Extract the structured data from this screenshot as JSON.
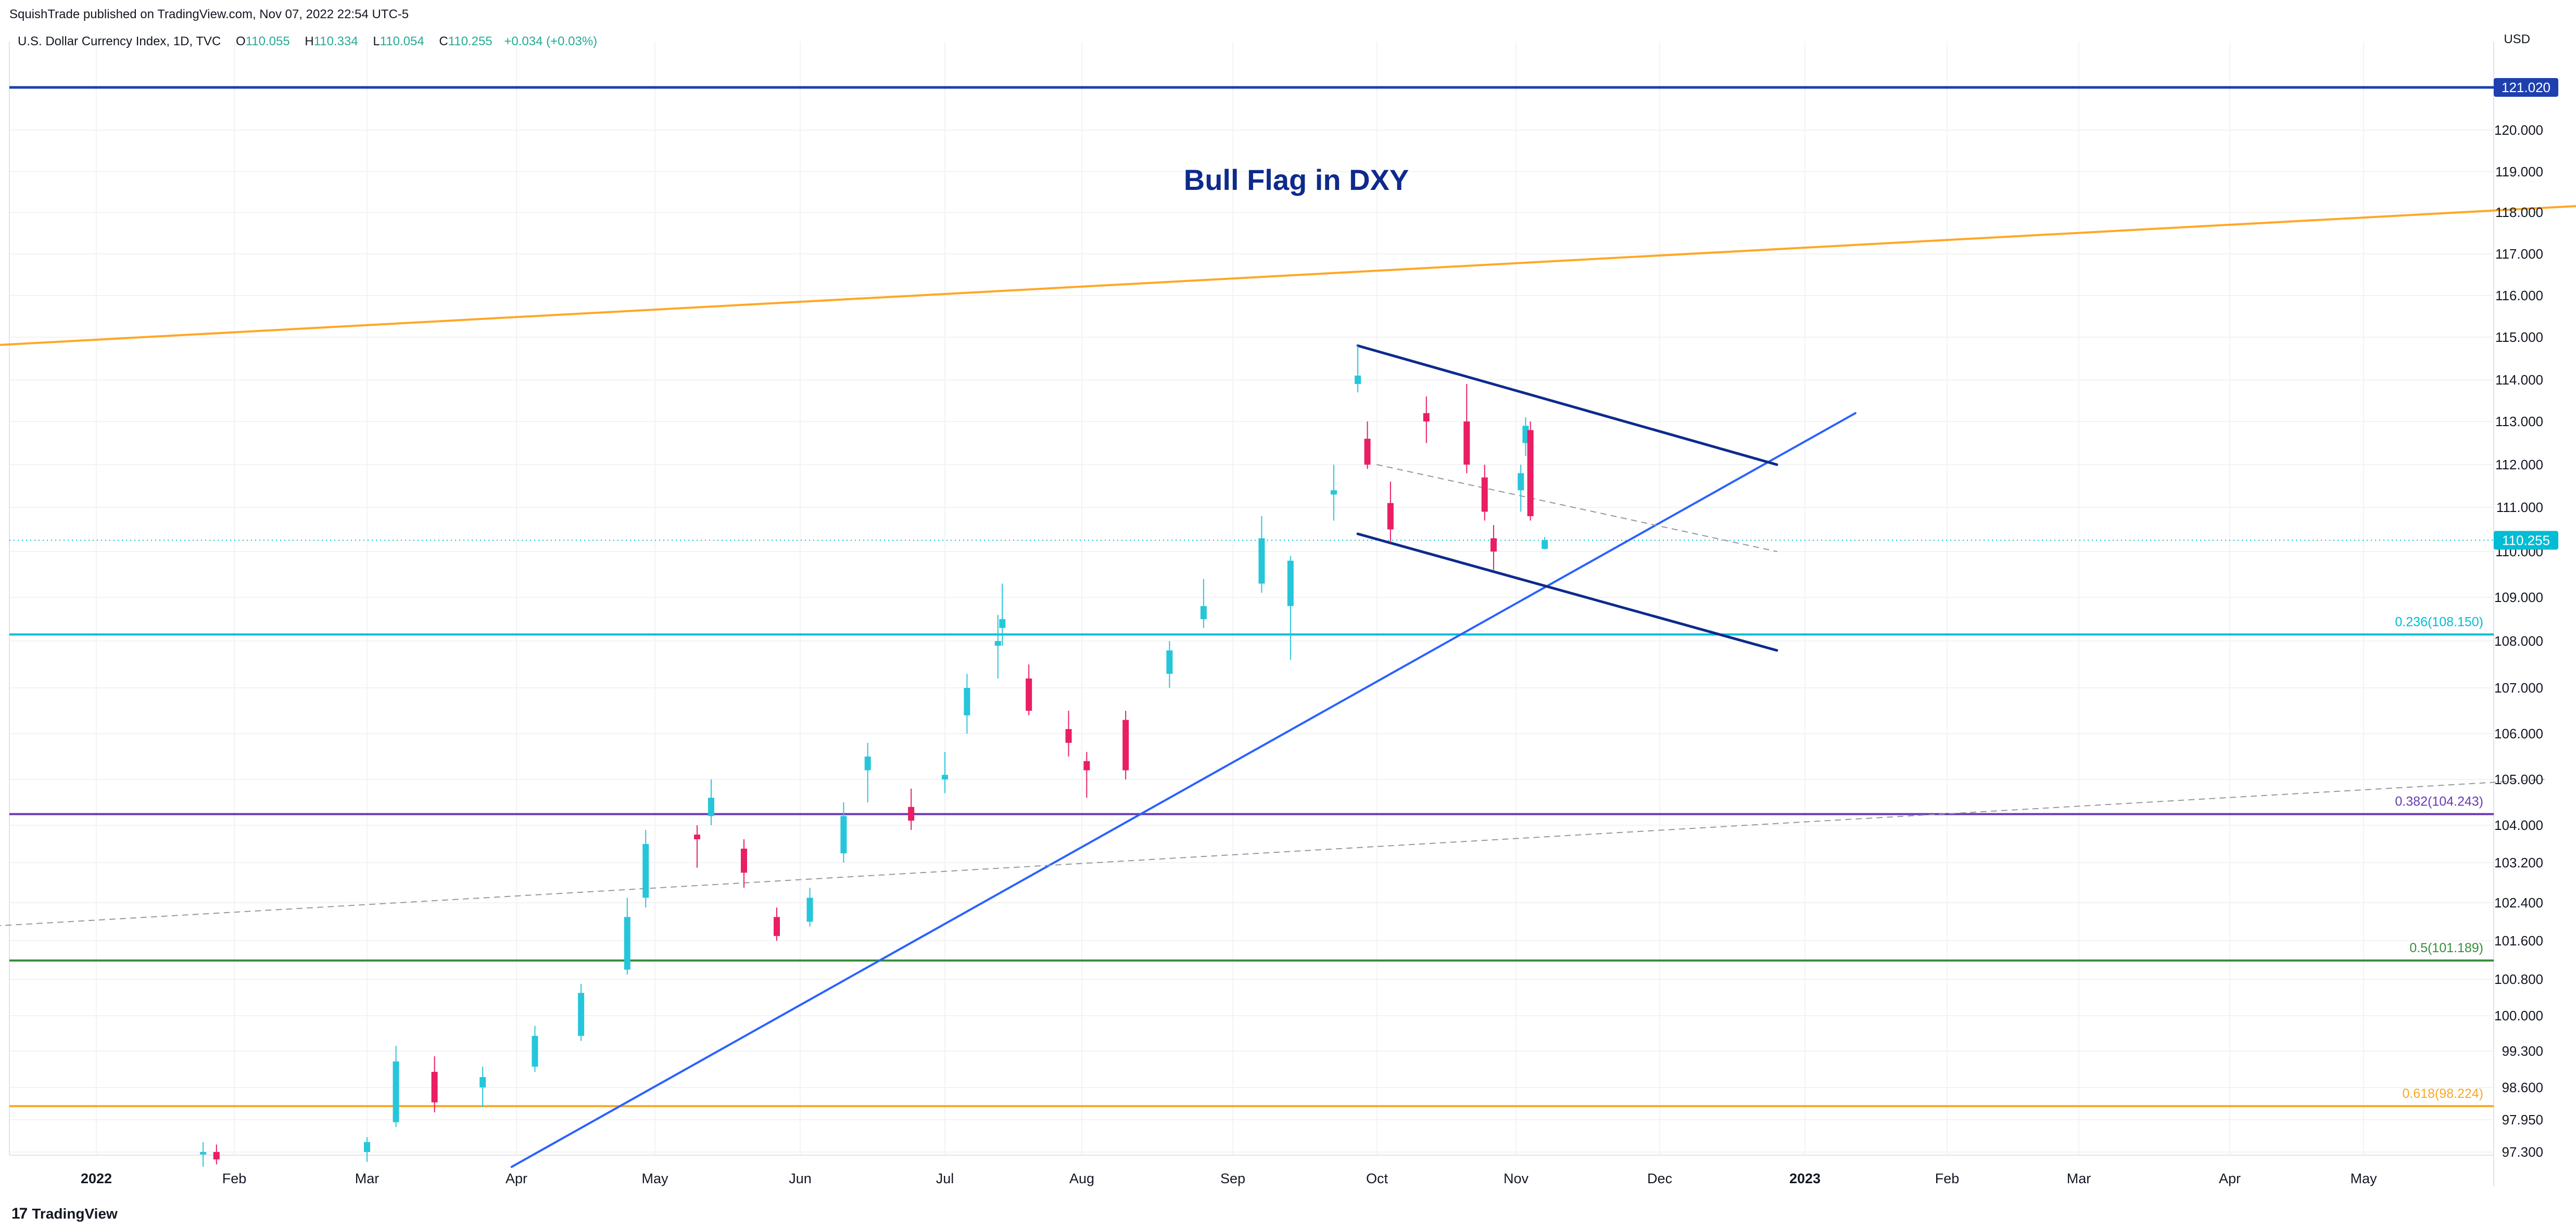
{
  "header": {
    "publisher": "SquishTrade published on TradingView.com, Nov 07, 2022 22:54 UTC-5"
  },
  "legend": {
    "symbol": "U.S. Dollar Currency Index, 1D, TVC",
    "o_label": "O",
    "o_value": "110.055",
    "h_label": "H",
    "h_value": "110.334",
    "l_label": "L",
    "l_value": "110.054",
    "c_label": "C",
    "c_value": "110.255",
    "change": "+0.034 (+0.03%)"
  },
  "currency": "USD",
  "footer": {
    "brand": "TradingView",
    "logo": "tradingview-logo-icon"
  },
  "colors": {
    "up": "#26c6da",
    "down": "#e91e63",
    "trend": "#2962ff",
    "flag": "#0d2a8c",
    "fib236": "#00bcd4",
    "fib382": "#673ab7",
    "fib50": "#388e3c",
    "fib618": "#f9a825",
    "orange": "#ffa726",
    "top_line": "#1e40af",
    "current": "#00bcd4"
  },
  "chart_data": {
    "type": "candlestick",
    "title": "Bull Flag in DXY",
    "y_ticks": [
      "121.020",
      "120.000",
      "119.000",
      "118.000",
      "117.000",
      "116.000",
      "115.000",
      "114.000",
      "113.000",
      "112.000",
      "111.000",
      "110.255",
      "110.000",
      "109.000",
      "108.000",
      "107.000",
      "106.000",
      "105.000",
      "104.000",
      "103.200",
      "102.400",
      "101.600",
      "100.800",
      "100.000",
      "99.300",
      "98.600",
      "97.950",
      "97.300"
    ],
    "x_ticks": [
      {
        "label": "2022",
        "bold": true
      },
      {
        "label": "Feb"
      },
      {
        "label": "Mar"
      },
      {
        "label": "Apr"
      },
      {
        "label": "May"
      },
      {
        "label": "Jun"
      },
      {
        "label": "Jul"
      },
      {
        "label": "Aug"
      },
      {
        "label": "Sep"
      },
      {
        "label": "Oct"
      },
      {
        "label": "Nov"
      },
      {
        "label": "Dec"
      },
      {
        "label": "2023",
        "bold": true
      },
      {
        "label": "Feb"
      },
      {
        "label": "Mar"
      },
      {
        "label": "Apr"
      },
      {
        "label": "May"
      }
    ],
    "horizontal_levels": [
      {
        "value": 121.02,
        "label": "121.020"
      },
      {
        "value": 108.15,
        "label": "0.236(108.150)"
      },
      {
        "value": 104.243,
        "label": "0.382(104.243)"
      },
      {
        "value": 101.189,
        "label": "0.5(101.189)"
      },
      {
        "value": 98.224,
        "label": "0.618(98.224)"
      }
    ],
    "last_price": {
      "value": 110.255,
      "label": "110.255"
    },
    "candles_approx": [
      {
        "date": "2022-01-25",
        "o": 97.25,
        "h": 97.5,
        "l": 97.0,
        "c": 97.3
      },
      {
        "date": "2022-01-28",
        "o": 97.3,
        "h": 97.45,
        "l": 97.05,
        "c": 97.15
      },
      {
        "date": "2022-03-01",
        "o": 97.3,
        "h": 97.6,
        "l": 97.1,
        "c": 97.5
      },
      {
        "date": "2022-03-07",
        "o": 97.9,
        "h": 99.4,
        "l": 97.8,
        "c": 99.1
      },
      {
        "date": "2022-03-15",
        "o": 98.9,
        "h": 99.2,
        "l": 98.1,
        "c": 98.3
      },
      {
        "date": "2022-03-25",
        "o": 98.6,
        "h": 99.0,
        "l": 98.2,
        "c": 98.8
      },
      {
        "date": "2022-04-05",
        "o": 99.0,
        "h": 99.8,
        "l": 98.9,
        "c": 99.6
      },
      {
        "date": "2022-04-15",
        "o": 99.6,
        "h": 100.7,
        "l": 99.5,
        "c": 100.5
      },
      {
        "date": "2022-04-25",
        "o": 101.0,
        "h": 102.5,
        "l": 100.9,
        "c": 102.1
      },
      {
        "date": "2022-04-29",
        "o": 102.5,
        "h": 103.9,
        "l": 102.3,
        "c": 103.6
      },
      {
        "date": "2022-05-10",
        "o": 103.8,
        "h": 104.0,
        "l": 103.1,
        "c": 103.7
      },
      {
        "date": "2022-05-13",
        "o": 104.2,
        "h": 105.0,
        "l": 104.0,
        "c": 104.6
      },
      {
        "date": "2022-05-20",
        "o": 103.5,
        "h": 103.7,
        "l": 102.7,
        "c": 103.0
      },
      {
        "date": "2022-05-27",
        "o": 102.1,
        "h": 102.3,
        "l": 101.6,
        "c": 101.7
      },
      {
        "date": "2022-06-03",
        "o": 102.0,
        "h": 102.7,
        "l": 101.9,
        "c": 102.5
      },
      {
        "date": "2022-06-10",
        "o": 103.4,
        "h": 104.5,
        "l": 103.2,
        "c": 104.2
      },
      {
        "date": "2022-06-15",
        "o": 105.2,
        "h": 105.8,
        "l": 104.5,
        "c": 105.5
      },
      {
        "date": "2022-06-24",
        "o": 104.4,
        "h": 104.8,
        "l": 103.9,
        "c": 104.1
      },
      {
        "date": "2022-07-01",
        "o": 105.0,
        "h": 105.6,
        "l": 104.7,
        "c": 105.1
      },
      {
        "date": "2022-07-06",
        "o": 106.4,
        "h": 107.3,
        "l": 106.0,
        "c": 107.0
      },
      {
        "date": "2022-07-13",
        "o": 107.9,
        "h": 108.6,
        "l": 107.2,
        "c": 108.0
      },
      {
        "date": "2022-07-14",
        "o": 108.3,
        "h": 109.3,
        "l": 107.9,
        "c": 108.5
      },
      {
        "date": "2022-07-20",
        "o": 107.2,
        "h": 107.5,
        "l": 106.4,
        "c": 106.5
      },
      {
        "date": "2022-07-29",
        "o": 106.1,
        "h": 106.5,
        "l": 105.5,
        "c": 105.8
      },
      {
        "date": "2022-08-02",
        "o": 105.4,
        "h": 105.6,
        "l": 104.6,
        "c": 105.2
      },
      {
        "date": "2022-08-10",
        "o": 106.3,
        "h": 106.5,
        "l": 105.0,
        "c": 105.2
      },
      {
        "date": "2022-08-19",
        "o": 107.3,
        "h": 108.0,
        "l": 107.0,
        "c": 107.8
      },
      {
        "date": "2022-08-26",
        "o": 108.5,
        "h": 109.4,
        "l": 108.3,
        "c": 108.8
      },
      {
        "date": "2022-09-07",
        "o": 109.3,
        "h": 110.8,
        "l": 109.1,
        "c": 110.3
      },
      {
        "date": "2022-09-13",
        "o": 108.8,
        "h": 109.9,
        "l": 107.6,
        "c": 109.8
      },
      {
        "date": "2022-09-22",
        "o": 111.3,
        "h": 112.0,
        "l": 110.7,
        "c": 111.4
      },
      {
        "date": "2022-09-27",
        "o": 113.9,
        "h": 114.8,
        "l": 113.7,
        "c": 114.1
      },
      {
        "date": "2022-09-29",
        "o": 112.6,
        "h": 113.0,
        "l": 111.9,
        "c": 112.0
      },
      {
        "date": "2022-10-04",
        "o": 111.1,
        "h": 111.6,
        "l": 110.2,
        "c": 110.5
      },
      {
        "date": "2022-10-12",
        "o": 113.2,
        "h": 113.6,
        "l": 112.5,
        "c": 113.0
      },
      {
        "date": "2022-10-21",
        "o": 113.0,
        "h": 113.9,
        "l": 111.8,
        "c": 112.0
      },
      {
        "date": "2022-10-25",
        "o": 111.7,
        "h": 112.0,
        "l": 110.7,
        "c": 110.9
      },
      {
        "date": "2022-10-27",
        "o": 110.3,
        "h": 110.6,
        "l": 109.6,
        "c": 110.0
      },
      {
        "date": "2022-11-02",
        "o": 111.4,
        "h": 112.0,
        "l": 110.9,
        "c": 111.8
      },
      {
        "date": "2022-11-03",
        "o": 112.5,
        "h": 113.1,
        "l": 112.2,
        "c": 112.9
      },
      {
        "date": "2022-11-04",
        "o": 112.8,
        "h": 113.0,
        "l": 110.7,
        "c": 110.8
      },
      {
        "date": "2022-11-07",
        "o": 110.06,
        "h": 110.33,
        "l": 110.05,
        "c": 110.26
      }
    ],
    "annotations": [
      {
        "type": "trendline",
        "name": "rising-support",
        "from": {
          "date": "2022-03-31",
          "value": 97.0
        },
        "to": {
          "date": "2023-01-12",
          "value": 113.2
        }
      },
      {
        "type": "trendline",
        "name": "flag-upper",
        "from": {
          "date": "2022-09-27",
          "value": 114.8
        },
        "to": {
          "date": "2022-12-26",
          "value": 112.0
        }
      },
      {
        "type": "trendline",
        "name": "flag-lower",
        "from": {
          "date": "2022-09-27",
          "value": 110.4
        },
        "to": {
          "date": "2022-12-26",
          "value": 107.8
        }
      },
      {
        "type": "trendline",
        "name": "orange-long-term",
        "from": {
          "date": "2021-12-07",
          "value": 114.8
        },
        "to": {
          "date": "2023-06-25",
          "value": 118.2
        }
      },
      {
        "type": "dashed",
        "name": "mid-trend",
        "from": {
          "date": "2021-12-07",
          "value": 101.9
        },
        "to": {
          "date": "2023-06-10",
          "value": 105.0
        }
      },
      {
        "type": "dashed",
        "name": "flag-mid",
        "from": {
          "date": "2022-10-01",
          "value": 112.0
        },
        "to": {
          "date": "2022-12-26",
          "value": 110.0
        }
      }
    ]
  }
}
